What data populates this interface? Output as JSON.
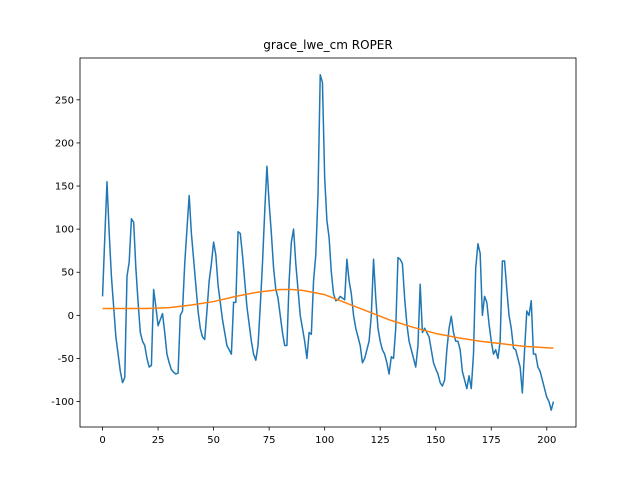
{
  "chart_data": {
    "type": "line",
    "title": "grace_lwe_cm ROPER",
    "xlim": [
      -10.15,
      213.15
    ],
    "ylim": [
      -129.5,
      298.5
    ],
    "xticks": [
      0,
      25,
      50,
      75,
      100,
      125,
      150,
      175,
      200
    ],
    "yticks": [
      -100,
      -50,
      0,
      50,
      100,
      150,
      200,
      250
    ],
    "series": [
      {
        "color": "#1f77b4",
        "x": [
          0,
          1,
          2,
          3,
          4,
          5,
          6,
          7,
          8,
          9,
          10,
          11,
          12,
          13,
          14,
          15,
          16,
          17,
          18,
          19,
          20,
          21,
          22,
          23,
          24,
          25,
          26,
          27,
          28,
          29,
          30,
          31,
          32,
          33,
          34,
          35,
          36,
          37,
          38,
          39,
          40,
          41,
          42,
          43,
          44,
          45,
          46,
          47,
          48,
          49,
          50,
          51,
          52,
          53,
          54,
          55,
          56,
          57,
          58,
          59,
          60,
          61,
          62,
          63,
          64,
          65,
          66,
          67,
          68,
          69,
          70,
          71,
          72,
          73,
          74,
          75,
          76,
          77,
          78,
          79,
          80,
          81,
          82,
          83,
          84,
          85,
          86,
          87,
          88,
          89,
          90,
          91,
          92,
          93,
          94,
          95,
          96,
          97,
          98,
          99,
          100,
          101,
          102,
          103,
          104,
          105,
          106,
          107,
          108,
          109,
          110,
          111,
          112,
          113,
          114,
          115,
          116,
          117,
          118,
          119,
          120,
          121,
          122,
          123,
          124,
          125,
          126,
          127,
          128,
          129,
          130,
          131,
          132,
          133,
          134,
          135,
          136,
          137,
          138,
          139,
          140,
          141,
          142,
          143,
          144,
          145,
          146,
          147,
          148,
          149,
          150,
          151,
          152,
          153,
          154,
          155,
          156,
          157,
          158,
          159,
          160,
          161,
          162,
          163,
          164,
          165,
          166,
          167,
          168,
          169,
          170,
          171,
          172,
          173,
          174,
          175,
          176,
          177,
          178,
          179,
          180,
          181,
          182,
          183,
          184,
          185,
          186,
          187,
          188,
          189,
          190,
          191,
          192,
          193,
          194,
          195,
          196,
          197,
          198,
          199,
          200,
          201,
          202,
          203
        ],
        "values": [
          22,
          90,
          155,
          95,
          45,
          10,
          -25,
          -45,
          -65,
          -78,
          -72,
          45,
          62,
          112,
          108,
          55,
          15,
          -20,
          -30,
          -35,
          -50,
          -60,
          -58,
          30,
          10,
          -12,
          -5,
          2,
          -20,
          -45,
          -55,
          -63,
          -66,
          -68,
          -67,
          0,
          5,
          60,
          100,
          139,
          95,
          65,
          35,
          5,
          -15,
          -25,
          -28,
          5,
          40,
          60,
          85,
          70,
          35,
          15,
          -5,
          -20,
          -35,
          -40,
          -45,
          15,
          15,
          97,
          95,
          70,
          40,
          10,
          -10,
          -30,
          -45,
          -52,
          -35,
          10,
          60,
          120,
          173,
          130,
          95,
          55,
          30,
          20,
          0,
          -20,
          -35,
          -35,
          40,
          85,
          100,
          60,
          30,
          0,
          -15,
          -30,
          -50,
          -20,
          -22,
          40,
          70,
          140,
          279,
          270,
          160,
          110,
          90,
          50,
          25,
          17,
          18,
          22,
          20,
          18,
          65,
          40,
          25,
          0,
          -15,
          -25,
          -35,
          -55,
          -50,
          -40,
          -30,
          0,
          65,
          20,
          -15,
          -30,
          -40,
          -45,
          -55,
          -68,
          -48,
          -50,
          -15,
          67,
          65,
          60,
          20,
          -10,
          -30,
          -40,
          -50,
          -60,
          -35,
          36,
          -20,
          -15,
          -20,
          -25,
          -40,
          -55,
          -62,
          -68,
          -78,
          -82,
          -75,
          -40,
          -15,
          -1,
          -20,
          -30,
          -30,
          -40,
          -65,
          -75,
          -85,
          -70,
          -85,
          -45,
          55,
          83,
          72,
          0,
          22,
          15,
          -10,
          -30,
          -45,
          -40,
          -50,
          -30,
          63,
          63,
          30,
          0,
          -15,
          -38,
          -40,
          -50,
          -60,
          -90,
          -40,
          5,
          0,
          17,
          -45,
          -45,
          -60,
          -65,
          -75,
          -85,
          -95,
          -100,
          -110,
          -100
        ]
      },
      {
        "color": "#ff7f0e",
        "x": [
          0,
          10,
          20,
          30,
          40,
          50,
          60,
          70,
          80,
          85,
          90,
          100,
          110,
          120,
          130,
          140,
          150,
          160,
          170,
          180,
          190,
          203
        ],
        "values": [
          8,
          8,
          8,
          9,
          12,
          16,
          22,
          27,
          30,
          30,
          29,
          24,
          14,
          4,
          -6,
          -14,
          -21,
          -26,
          -30,
          -33,
          -36,
          -38
        ]
      }
    ]
  }
}
